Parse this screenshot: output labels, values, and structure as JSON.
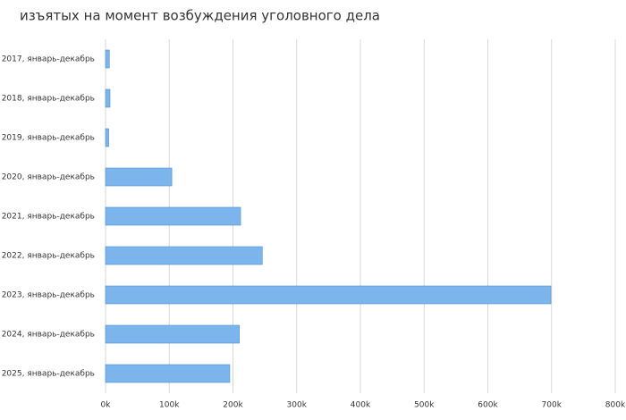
{
  "chart_data": {
    "type": "hbar",
    "title": "изъятых на момент возбуждения уголовного дела",
    "categories": [
      "2017, январь-декабрь",
      "2018, январь-декабрь",
      "2019, январь-декабрь",
      "2020, январь-декабрь",
      "2021, январь-декабрь",
      "2022, январь-декабрь",
      "2023, январь-декабрь",
      "2024, январь-декабрь",
      "2025, январь-декабрь"
    ],
    "values": [
      6000,
      7000,
      5000,
      104000,
      212000,
      246000,
      699000,
      210000,
      195000
    ],
    "color": "#7cb5ec",
    "xlim": [
      0,
      800000
    ],
    "xticks": [
      {
        "value": 0,
        "label": "0k"
      },
      {
        "value": 100000,
        "label": "100k"
      },
      {
        "value": 200000,
        "label": "200k"
      },
      {
        "value": 300000,
        "label": "300k"
      },
      {
        "value": 400000,
        "label": "400k"
      },
      {
        "value": 500000,
        "label": "500k"
      },
      {
        "value": 600000,
        "label": "600k"
      },
      {
        "value": 700000,
        "label": "700k"
      },
      {
        "value": 800000,
        "label": "800k"
      }
    ],
    "grid": true
  }
}
